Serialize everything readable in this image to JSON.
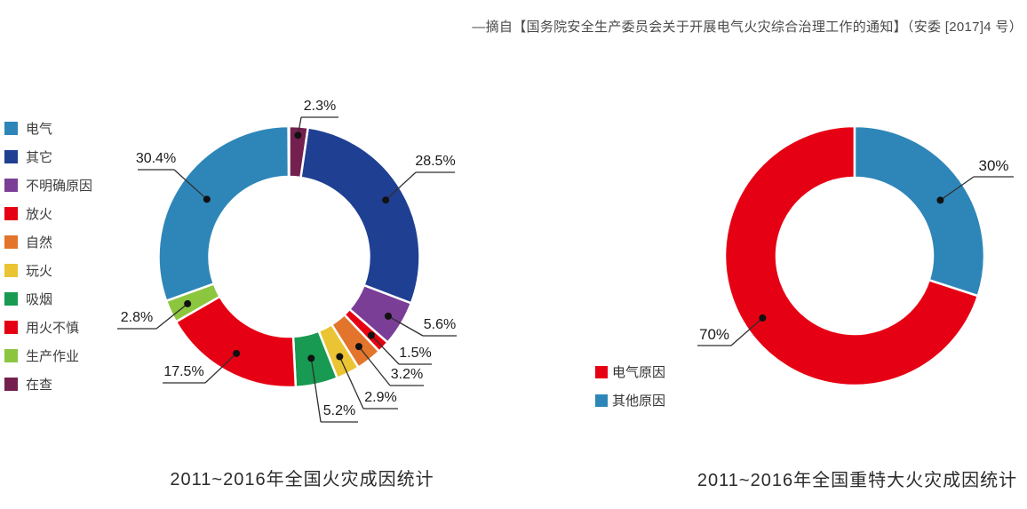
{
  "header": {
    "source_note": "—摘自【国务院安全生产委员会关于开展电气火灾综合治理工作的通知】（安委 [2017]4 号）"
  },
  "chart_data": [
    {
      "type": "pie",
      "subtype": "donut",
      "title": "2011~2016年全国火灾成因统计",
      "legend_position": "left",
      "series": [
        {
          "label": "电气",
          "value": 30.4,
          "display": "30.4%",
          "color": "#2e86b8"
        },
        {
          "label": "其它",
          "value": 28.5,
          "display": "28.5%",
          "color": "#1f3f93"
        },
        {
          "label": "不明确原因",
          "value": 5.6,
          "display": "5.6%",
          "color": "#7b3e97"
        },
        {
          "label": "放火",
          "value": 1.5,
          "display": "1.5%",
          "color": "#e60013"
        },
        {
          "label": "自然",
          "value": 3.2,
          "display": "3.2%",
          "color": "#e2742c"
        },
        {
          "label": "玩火",
          "value": 2.9,
          "display": "2.9%",
          "color": "#eac433"
        },
        {
          "label": "吸烟",
          "value": 5.2,
          "display": "5.2%",
          "color": "#189a52"
        },
        {
          "label": "用火不慎",
          "value": 17.5,
          "display": "17.5%",
          "color": "#e60013"
        },
        {
          "label": "生产作业",
          "value": 2.8,
          "display": "2.8%",
          "color": "#8cc63f"
        },
        {
          "label": "在查",
          "value": 2.3,
          "display": "2.3%",
          "color": "#73204f"
        }
      ]
    },
    {
      "type": "pie",
      "subtype": "donut",
      "title": "2011~2016年全国重特大火灾成因统计",
      "legend_position": "bottom-left",
      "series": [
        {
          "label": "电气原因",
          "value": 70,
          "display": "70%",
          "color": "#e60013"
        },
        {
          "label": "其他原因",
          "value": 30,
          "display": "30%",
          "color": "#2e86b8"
        }
      ]
    }
  ]
}
